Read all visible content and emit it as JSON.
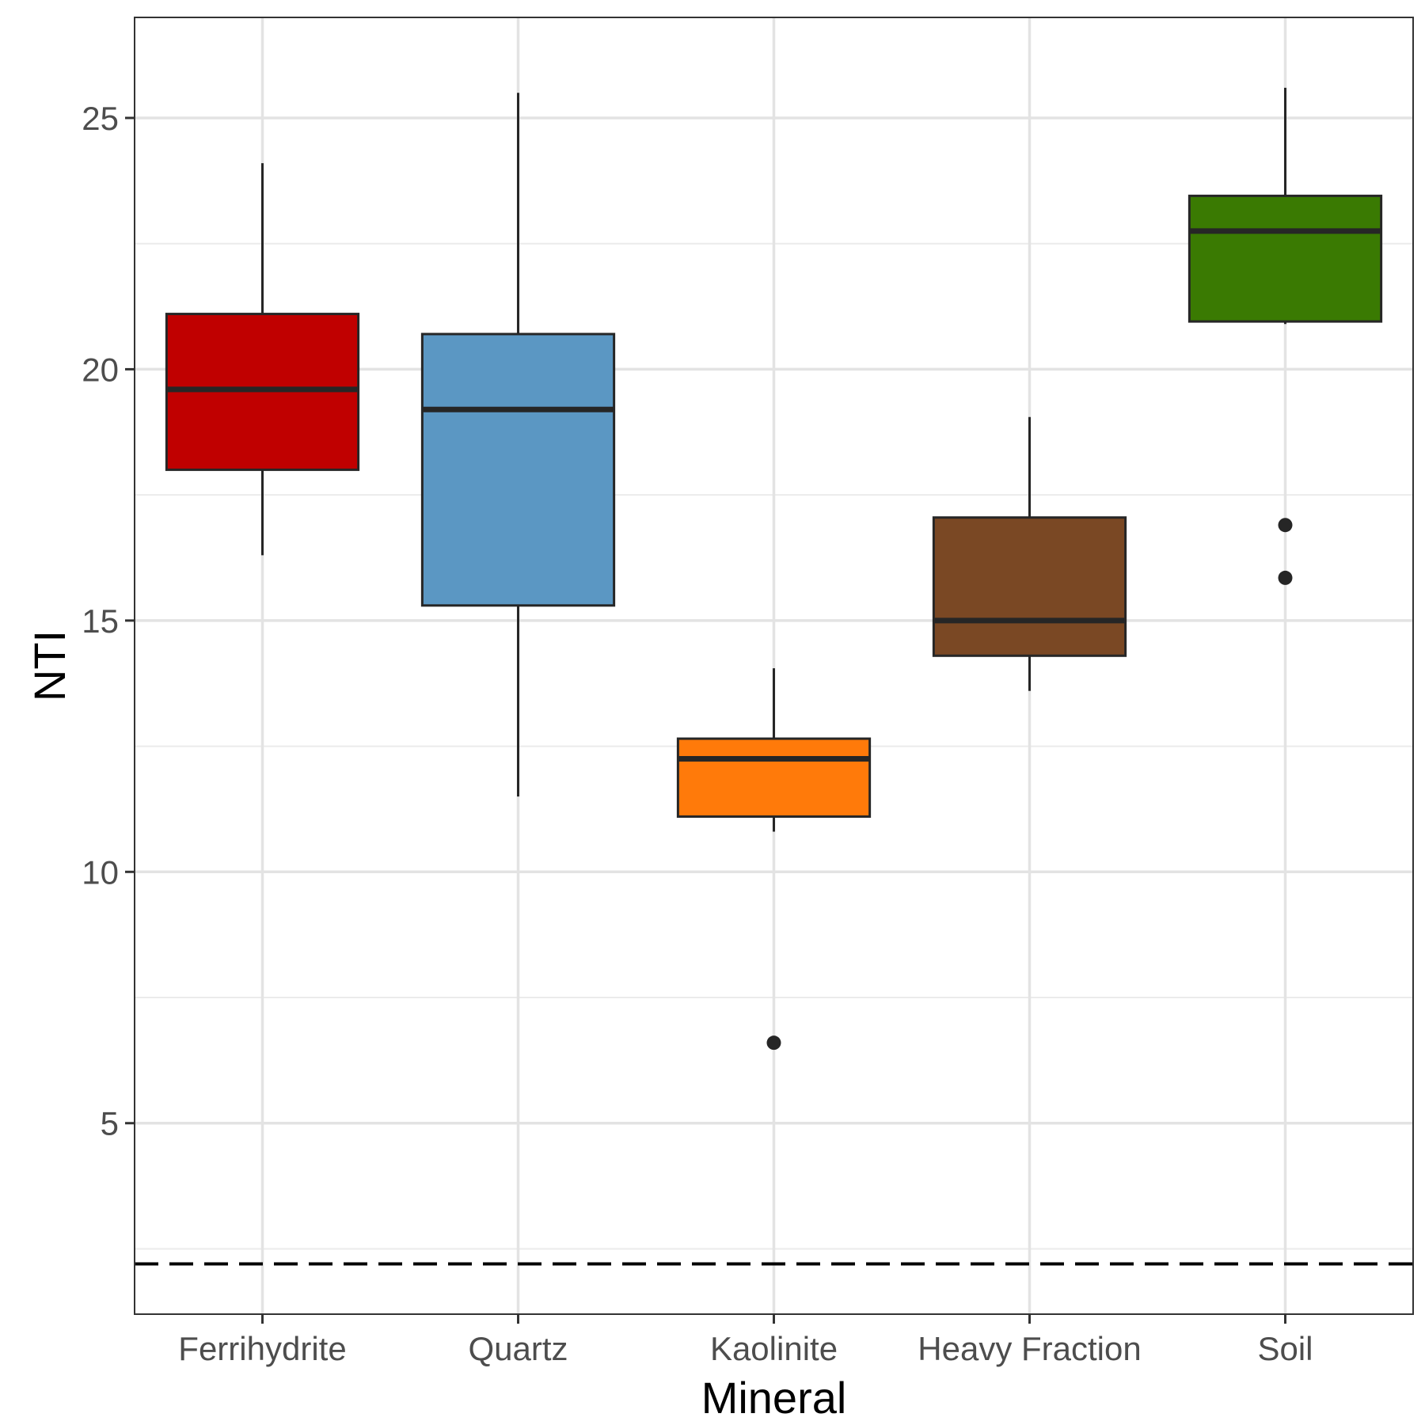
{
  "chart_data": {
    "type": "boxplot",
    "title": "",
    "xlabel": "Mineral",
    "ylabel": "NTI",
    "ylim": [
      1.2,
      27.0
    ],
    "yticks": [
      5,
      10,
      15,
      20,
      25
    ],
    "grid": true,
    "reference_line": {
      "y": 2.2,
      "style": "dashed"
    },
    "categories": [
      "Ferrihydrite",
      "Quartz",
      "Kaolinite",
      "Heavy Fraction",
      "Soil"
    ],
    "boxes": [
      {
        "name": "Ferrihydrite",
        "color": "#c00000",
        "whisker_low": 16.3,
        "q1": 18.0,
        "median": 19.6,
        "q3": 21.1,
        "whisker_high": 24.1,
        "outliers": []
      },
      {
        "name": "Quartz",
        "color": "#5b97c3",
        "whisker_low": 11.5,
        "q1": 15.3,
        "median": 19.2,
        "q3": 20.7,
        "whisker_high": 25.5,
        "outliers": []
      },
      {
        "name": "Kaolinite",
        "color": "#ff7a0a",
        "whisker_low": 10.8,
        "q1": 11.1,
        "median": 12.25,
        "q3": 12.65,
        "whisker_high": 14.05,
        "outliers": [
          6.6
        ]
      },
      {
        "name": "Heavy Fraction",
        "color": "#7a4824",
        "whisker_low": 13.6,
        "q1": 14.3,
        "median": 15.0,
        "q3": 17.05,
        "whisker_high": 19.05,
        "outliers": []
      },
      {
        "name": "Soil",
        "color": "#3a7a02",
        "whisker_low": 20.9,
        "q1": 20.95,
        "median": 22.75,
        "q3": 23.45,
        "whisker_high": 25.6,
        "outliers": [
          16.9,
          15.85
        ]
      }
    ]
  }
}
